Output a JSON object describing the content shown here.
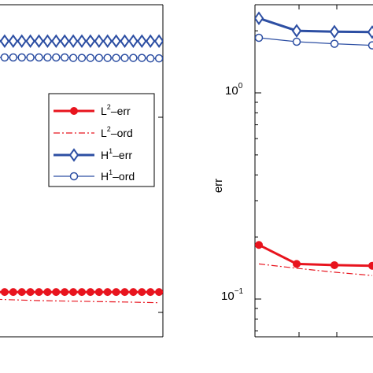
{
  "colors": {
    "red": "#e8141e",
    "blue": "#2d4fa3"
  },
  "chart_data": [
    {
      "type": "line",
      "panel": "left",
      "yscale": "log",
      "xlabel": "",
      "ylabel": "",
      "grid": false,
      "legend": {
        "placement": "right-middle",
        "entries": [
          {
            "base": "L",
            "sup": "2",
            "suffix": "–err",
            "color": "#e8141e",
            "style": "solid",
            "marker": "filled-circle"
          },
          {
            "base": "L",
            "sup": "2",
            "suffix": "–ord",
            "color": "#e8141e",
            "style": "dashdot",
            "marker": "none"
          },
          {
            "base": "H",
            "sup": "1",
            "suffix": "–err",
            "color": "#2d4fa3",
            "style": "solid",
            "marker": "diamond"
          },
          {
            "base": "H",
            "sup": "1",
            "suffix": "–ord",
            "color": "#2d4fa3",
            "style": "solid",
            "marker": "open-circle"
          }
        ]
      },
      "series": [
        {
          "key": "L2-err",
          "color": "#e8141e",
          "style": "solid",
          "marker": "filled-circle",
          "points": [
            [
              0,
              0.142
            ],
            [
              1,
              0.142
            ],
            [
              2,
              0.142
            ],
            [
              3,
              0.142
            ],
            [
              4,
              0.142
            ],
            [
              5,
              0.142
            ],
            [
              6,
              0.142
            ],
            [
              7,
              0.142
            ],
            [
              8,
              0.142
            ],
            [
              9,
              0.142
            ],
            [
              10,
              0.142
            ],
            [
              11,
              0.142
            ],
            [
              12,
              0.142
            ],
            [
              13,
              0.142
            ],
            [
              14,
              0.142
            ],
            [
              15,
              0.142
            ],
            [
              16,
              0.142
            ],
            [
              17,
              0.142
            ],
            [
              18,
              0.142
            ],
            [
              19,
              0.142
            ]
          ]
        },
        {
          "key": "L2-ord",
          "color": "#e8141e",
          "style": "dashdot",
          "marker": "none",
          "points": [
            [
              0,
              0.131
            ],
            [
              5,
              0.129
            ],
            [
              10,
              0.128
            ],
            [
              15,
              0.127
            ],
            [
              19,
              0.126
            ]
          ]
        },
        {
          "key": "H1-err",
          "color": "#2d4fa3",
          "style": "solid",
          "marker": "diamond",
          "points": [
            [
              0,
              2.34
            ],
            [
              1,
              2.34
            ],
            [
              2,
              2.34
            ],
            [
              3,
              2.34
            ],
            [
              4,
              2.34
            ],
            [
              5,
              2.34
            ],
            [
              6,
              2.34
            ],
            [
              7,
              2.34
            ],
            [
              8,
              2.34
            ],
            [
              9,
              2.34
            ],
            [
              10,
              2.34
            ],
            [
              11,
              2.34
            ],
            [
              12,
              2.34
            ],
            [
              13,
              2.34
            ],
            [
              14,
              2.34
            ],
            [
              15,
              2.34
            ],
            [
              16,
              2.34
            ],
            [
              17,
              2.34
            ],
            [
              18,
              2.34
            ],
            [
              19,
              2.34
            ]
          ]
        },
        {
          "key": "H1-ord",
          "color": "#2d4fa3",
          "style": "solid",
          "marker": "open-circle",
          "points": [
            [
              0,
              1.95
            ],
            [
              1,
              1.95
            ],
            [
              2,
              1.95
            ],
            [
              3,
              1.95
            ],
            [
              4,
              1.95
            ],
            [
              5,
              1.95
            ],
            [
              6,
              1.95
            ],
            [
              7,
              1.95
            ],
            [
              8,
              1.95
            ],
            [
              9,
              1.94
            ],
            [
              10,
              1.94
            ],
            [
              11,
              1.94
            ],
            [
              12,
              1.94
            ],
            [
              13,
              1.94
            ],
            [
              14,
              1.94
            ],
            [
              15,
              1.94
            ],
            [
              16,
              1.94
            ],
            [
              17,
              1.94
            ],
            [
              18,
              1.93
            ],
            [
              19,
              1.93
            ]
          ]
        }
      ]
    },
    {
      "type": "line",
      "panel": "right",
      "yscale": "log",
      "xlabel": "",
      "ylabel": "err",
      "grid": false,
      "ytick_labels": [
        {
          "value": 1,
          "base": "10",
          "exp": "0"
        },
        {
          "value": 0.1,
          "base": "10",
          "exp": "−1"
        }
      ],
      "series": [
        {
          "key": "H1-err",
          "color": "#2d4fa3",
          "style": "solid",
          "marker": "diamond",
          "points": [
            [
              1,
              2.3
            ],
            [
              2,
              2.0
            ],
            [
              3,
              1.98
            ],
            [
              4,
              1.97
            ]
          ]
        },
        {
          "key": "H1-ord",
          "color": "#2d4fa3",
          "style": "solid",
          "marker": "open-circle",
          "points": [
            [
              1,
              1.85
            ],
            [
              2,
              1.77
            ],
            [
              3,
              1.73
            ],
            [
              4,
              1.7
            ]
          ]
        },
        {
          "key": "L2-err",
          "color": "#e8141e",
          "style": "solid",
          "marker": "filled-circle",
          "points": [
            [
              1,
              0.183
            ],
            [
              2,
              0.148
            ],
            [
              3,
              0.146
            ],
            [
              4,
              0.145
            ]
          ]
        },
        {
          "key": "L2-ord",
          "color": "#e8141e",
          "style": "dashdot",
          "marker": "none",
          "points": [
            [
              1,
              0.148
            ],
            [
              2,
              0.141
            ],
            [
              3,
              0.135
            ],
            [
              4,
              0.13
            ]
          ]
        }
      ]
    }
  ]
}
